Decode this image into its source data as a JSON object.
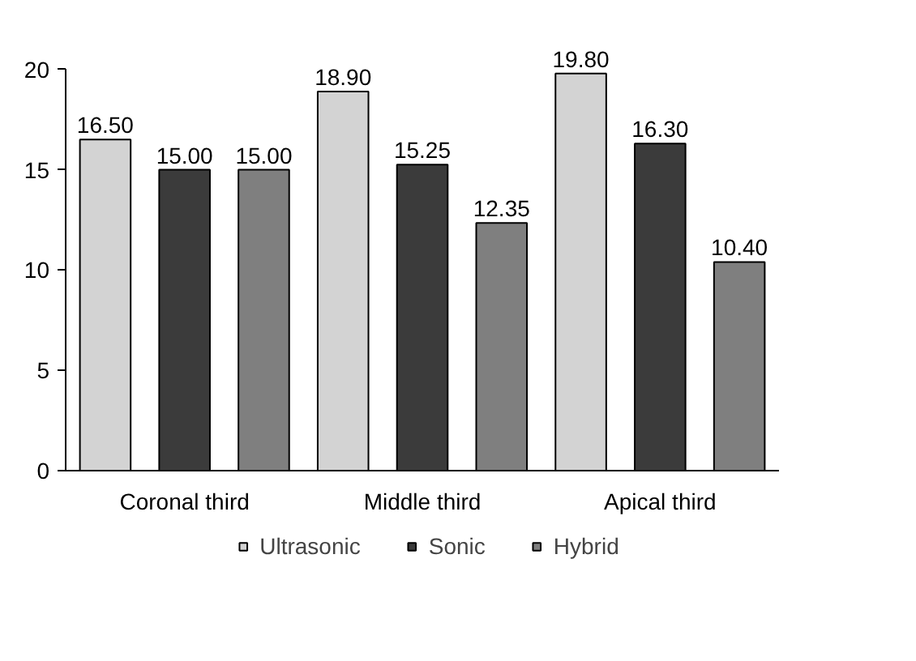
{
  "chart_data": {
    "type": "bar",
    "categories": [
      "Coronal third",
      "Middle third",
      "Apical third"
    ],
    "series": [
      {
        "name": "Ultrasonic",
        "color": "#d3d3d3",
        "values": [
          16.5,
          18.9,
          19.8
        ],
        "value_labels": [
          "16.50",
          "18.90",
          "19.80"
        ]
      },
      {
        "name": "Sonic",
        "color": "#3b3b3b",
        "values": [
          15.0,
          15.25,
          16.3
        ],
        "value_labels": [
          "15.00",
          "15.25",
          "16.30"
        ]
      },
      {
        "name": "Hybrid",
        "color": "#7f7f7f",
        "values": [
          15.0,
          12.35,
          10.4
        ],
        "value_labels": [
          "15.00",
          "12.35",
          "10.40"
        ]
      }
    ],
    "ylim": [
      0,
      20
    ],
    "yticks": [
      0,
      5,
      10,
      15,
      20
    ],
    "grid": false,
    "legend": "bottom"
  }
}
